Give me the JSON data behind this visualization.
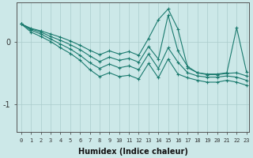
{
  "xlabel": "Humidex (Indice chaleur)",
  "bg_color": "#cce8e8",
  "line_color": "#1a7a6e",
  "grid_color": "#aacccc",
  "xlim": [
    -0.5,
    23.3
  ],
  "ylim": [
    -1.45,
    0.62
  ],
  "yticks": [
    0,
    -1
  ],
  "xticks": [
    0,
    1,
    2,
    3,
    4,
    5,
    6,
    7,
    8,
    9,
    10,
    11,
    12,
    13,
    14,
    15,
    16,
    17,
    18,
    19,
    20,
    21,
    22,
    23
  ],
  "series": [
    [
      0.28,
      0.21,
      0.17,
      0.12,
      0.07,
      0.01,
      -0.06,
      -0.14,
      -0.21,
      -0.15,
      -0.2,
      -0.16,
      -0.22,
      0.05,
      0.35,
      0.52,
      0.2,
      -0.42,
      -0.5,
      -0.52,
      -0.52,
      -0.5,
      0.22,
      -0.48
    ],
    [
      0.28,
      0.2,
      0.15,
      0.08,
      0.02,
      -0.05,
      -0.13,
      -0.23,
      -0.32,
      -0.25,
      -0.3,
      -0.27,
      -0.33,
      -0.08,
      -0.28,
      0.42,
      -0.15,
      -0.4,
      -0.5,
      -0.53,
      -0.53,
      -0.51,
      -0.5,
      -0.55
    ],
    [
      0.28,
      0.18,
      0.12,
      0.04,
      -0.04,
      -0.12,
      -0.22,
      -0.34,
      -0.43,
      -0.36,
      -0.42,
      -0.39,
      -0.45,
      -0.2,
      -0.43,
      -0.1,
      -0.33,
      -0.5,
      -0.55,
      -0.57,
      -0.57,
      -0.55,
      -0.57,
      -0.62
    ],
    [
      0.28,
      0.15,
      0.08,
      0.0,
      -0.1,
      -0.19,
      -0.3,
      -0.45,
      -0.56,
      -0.5,
      -0.56,
      -0.54,
      -0.6,
      -0.35,
      -0.58,
      -0.28,
      -0.52,
      -0.58,
      -0.62,
      -0.65,
      -0.65,
      -0.62,
      -0.65,
      -0.7
    ]
  ]
}
